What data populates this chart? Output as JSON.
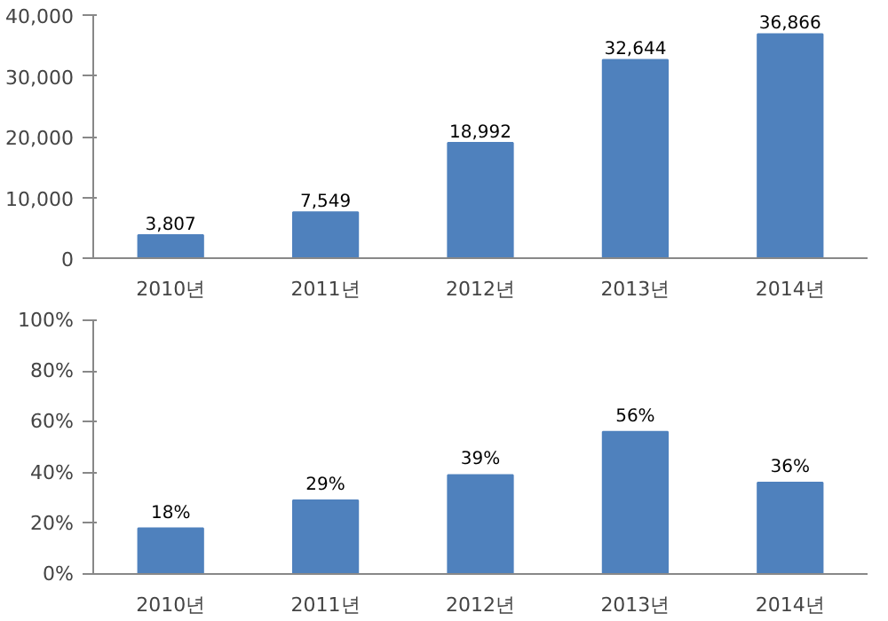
{
  "chart_data": [
    {
      "type": "bar",
      "categories": [
        "2010년",
        "2011년",
        "2012년",
        "2013년",
        "2014년"
      ],
      "series": [
        {
          "color": "#4f81bd",
          "values": [
            3807,
            7549,
            18992,
            32644,
            36866
          ],
          "value_labels": [
            "3,807",
            "7,549",
            "18,992",
            "32,644",
            "36,866"
          ]
        }
      ],
      "ylim": [
        0,
        40000
      ],
      "yticks": [
        0,
        {
          "value": 10000,
          "label": "10,000"
        },
        {
          "value": 20000,
          "label": "20,000"
        },
        {
          "value": 30000,
          "label": "30,000"
        },
        {
          "value": 40000,
          "label": "40,000"
        }
      ],
      "grid": false
    },
    {
      "type": "bar",
      "categories": [
        "2010년",
        "2011년",
        "2012년",
        "2013년",
        "2014년"
      ],
      "series": [
        {
          "color": "#4f81bd",
          "values": [
            18,
            29,
            39,
            56,
            36
          ],
          "value_labels": [
            "18%",
            "29%",
            "39%",
            "56%",
            "36%"
          ]
        }
      ],
      "ylim": [
        0,
        100
      ],
      "yticks": [
        {
          "value": 0,
          "label": "0%"
        },
        {
          "value": 20,
          "label": "20%"
        },
        {
          "value": 40,
          "label": "40%"
        },
        {
          "value": 60,
          "label": "60%"
        },
        {
          "value": 80,
          "label": "80%"
        },
        {
          "value": 100,
          "label": "100%"
        }
      ],
      "grid": false
    }
  ]
}
